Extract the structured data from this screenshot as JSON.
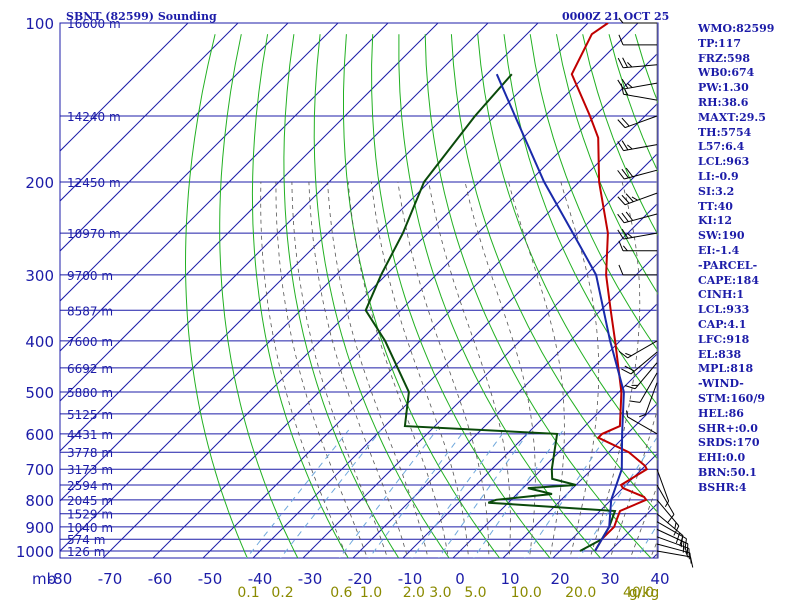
{
  "header": {
    "station": "SBNT (82599) Sounding",
    "datetime": "0000Z 21 OCT 25"
  },
  "stats": [
    "WMO:82599",
    "TP:117",
    "FRZ:598",
    "WB0:674",
    "PW:1.30",
    "RH:38.6",
    "MAXT:29.5",
    "TH:5754",
    "L57:6.4",
    "LCL:963",
    "LI:-0.9",
    "SI:3.2",
    "TT:40",
    "KI:12",
    "SW:190",
    "EI:-1.4",
    "-PARCEL-",
    "CAPE:184",
    "CINH:1",
    "LCL:933",
    "CAP:4.1",
    "LFC:918",
    "EL:838",
    "MPL:818",
    "-WIND-",
    "STM:160/9",
    "HEL:86",
    "SHR+:0.0",
    "SRDS:170",
    "EHI:0.0",
    "BRN:50.1",
    "BSHR:4"
  ],
  "colors": {
    "grid": "#1c1ca8",
    "dry_adiabat": "#22b022",
    "moist_adiabat": "#555555",
    "mixing_ratio": "#6fa8dc",
    "temperature": "#c00000",
    "dewpoint": "#0a4a0a",
    "parcel": "#1a2aaa",
    "wind": "#000000"
  },
  "chart_data": {
    "type": "line",
    "title": "SBNT (82599) Sounding",
    "xlabel": "",
    "ylabel": "mb",
    "x_unit": "°C",
    "y_axis_scale": "log-pressure",
    "pressure_ticks": [
      100,
      200,
      300,
      400,
      500,
      600,
      700,
      800,
      900,
      1000
    ],
    "pressure_levels": [
      100,
      150,
      200,
      250,
      300,
      350,
      400,
      450,
      500,
      550,
      600,
      650,
      700,
      750,
      800,
      850,
      900,
      950,
      1000
    ],
    "height_labels": [
      "16600 m",
      "14240 m",
      "12450 m",
      "10970 m",
      "9700 m",
      "8587 m",
      "7600 m",
      "6692 m",
      "5880 m",
      "5125 m",
      "4431 m",
      "3778 m",
      "3173 m",
      "2594 m",
      "2045 m",
      "1529 m",
      "1040 m",
      "574 m",
      "126 m"
    ],
    "temp_ticks": [
      -80,
      -70,
      -60,
      -50,
      -40,
      -30,
      -20,
      -10,
      0,
      10,
      20,
      30,
      40
    ],
    "temp_tick_labels": [
      "-80",
      "-70",
      "-60",
      "-50",
      "-40",
      "-30",
      "-20",
      "-10",
      "0",
      "10",
      "20",
      "30",
      "40"
    ],
    "mixing_ratio_labels": [
      "0.1",
      "0.2",
      "0.6",
      "1.0",
      "2.0",
      "3.0",
      "5.0",
      "10.0",
      "20.0",
      "40.0"
    ],
    "unit_label": "g/kg",
    "ylim": [
      100,
      1000
    ],
    "grid": true,
    "series": [
      {
        "name": "Temperature",
        "points": [
          [
            100,
            -76
          ],
          [
            105,
            -77
          ],
          [
            125,
            -73
          ],
          [
            150,
            -61
          ],
          [
            165,
            -55
          ],
          [
            200,
            -46
          ],
          [
            250,
            -34
          ],
          [
            300,
            -26
          ],
          [
            350,
            -18
          ],
          [
            400,
            -11
          ],
          [
            500,
            0.5
          ],
          [
            580,
            7
          ],
          [
            600,
            5
          ],
          [
            610,
            5
          ],
          [
            650,
            14
          ],
          [
            690,
            20
          ],
          [
            700,
            21
          ],
          [
            750,
            19
          ],
          [
            760,
            20
          ],
          [
            790,
            26
          ],
          [
            800,
            27
          ],
          [
            840,
            24
          ],
          [
            870,
            25
          ],
          [
            900,
            26
          ],
          [
            950,
            26
          ],
          [
            1000,
            27
          ]
        ]
      },
      {
        "name": "Dewpoint",
        "points": [
          [
            125,
            -85
          ],
          [
            150,
            -84
          ],
          [
            200,
            -81
          ],
          [
            250,
            -75
          ],
          [
            300,
            -71
          ],
          [
            350,
            -67
          ],
          [
            400,
            -57
          ],
          [
            500,
            -42
          ],
          [
            580,
            -36
          ],
          [
            600,
            -4
          ],
          [
            700,
            2
          ],
          [
            730,
            4
          ],
          [
            750,
            10
          ],
          [
            760,
            1
          ],
          [
            780,
            7
          ],
          [
            800,
            -3
          ],
          [
            810,
            -4
          ],
          [
            840,
            23
          ],
          [
            900,
            25
          ],
          [
            950,
            26
          ],
          [
            1000,
            24
          ]
        ]
      },
      {
        "name": "Parcel",
        "points": [
          [
            125,
            -88
          ],
          [
            150,
            -76
          ],
          [
            200,
            -57
          ],
          [
            250,
            -41
          ],
          [
            300,
            -28
          ],
          [
            400,
            -12
          ],
          [
            500,
            1
          ],
          [
            600,
            9
          ],
          [
            700,
            16
          ],
          [
            800,
            20
          ],
          [
            900,
            25
          ],
          [
            1000,
            27
          ]
        ]
      }
    ],
    "wind_barbs": [
      {
        "p": 100,
        "dir": 270,
        "spd": 5
      },
      {
        "p": 110,
        "dir": 270,
        "spd": 10
      },
      {
        "p": 120,
        "dir": 265,
        "spd": 25
      },
      {
        "p": 130,
        "dir": 260,
        "spd": 25
      },
      {
        "p": 140,
        "dir": 280,
        "spd": 15
      },
      {
        "p": 150,
        "dir": 250,
        "spd": 20
      },
      {
        "p": 170,
        "dir": 260,
        "spd": 25
      },
      {
        "p": 190,
        "dir": 255,
        "spd": 30
      },
      {
        "p": 210,
        "dir": 250,
        "spd": 35
      },
      {
        "p": 230,
        "dir": 255,
        "spd": 30
      },
      {
        "p": 250,
        "dir": 260,
        "spd": 25
      },
      {
        "p": 270,
        "dir": 270,
        "spd": 15
      },
      {
        "p": 300,
        "dir": 270,
        "spd": 10
      },
      {
        "p": 400,
        "dir": 240,
        "spd": 15
      },
      {
        "p": 420,
        "dir": 230,
        "spd": 20
      },
      {
        "p": 440,
        "dir": 220,
        "spd": 15
      },
      {
        "p": 460,
        "dir": 210,
        "spd": 10
      },
      {
        "p": 480,
        "dir": 200,
        "spd": 5
      },
      {
        "p": 600,
        "dir": 300,
        "spd": 5
      },
      {
        "p": 700,
        "dir": 160,
        "spd": 5
      },
      {
        "p": 750,
        "dir": 150,
        "spd": 10
      },
      {
        "p": 800,
        "dir": 140,
        "spd": 15
      },
      {
        "p": 850,
        "dir": 130,
        "spd": 20
      },
      {
        "p": 880,
        "dir": 120,
        "spd": 20
      },
      {
        "p": 910,
        "dir": 115,
        "spd": 20
      },
      {
        "p": 940,
        "dir": 110,
        "spd": 15
      },
      {
        "p": 970,
        "dir": 105,
        "spd": 15
      },
      {
        "p": 1000,
        "dir": 100,
        "spd": 10
      }
    ]
  }
}
